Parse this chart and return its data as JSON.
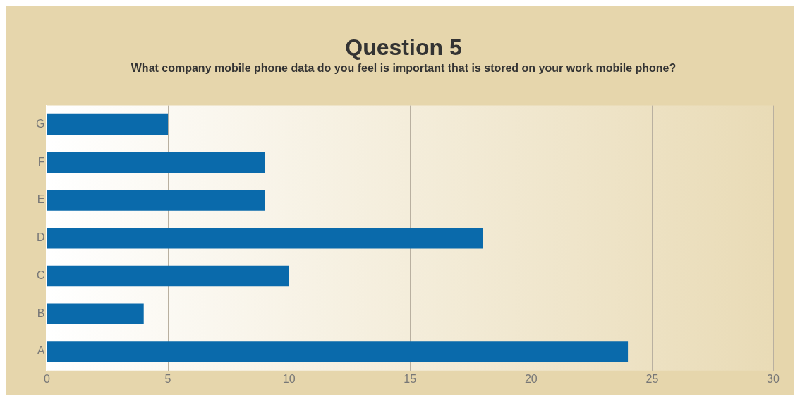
{
  "chart_data": {
    "type": "bar",
    "orientation": "horizontal",
    "title": "Question 5",
    "subtitle": "What company mobile phone data do you feel is important that is stored on your work mobile phone?",
    "categories": [
      "G",
      "F",
      "E",
      "D",
      "C",
      "B",
      "A"
    ],
    "values": [
      5,
      9,
      9,
      18,
      10,
      4,
      24
    ],
    "color": "#0a6aab",
    "xlim": [
      0,
      30
    ],
    "xticks": [
      0,
      5,
      10,
      15,
      20,
      25,
      30
    ],
    "grid": "x",
    "legend": false
  }
}
